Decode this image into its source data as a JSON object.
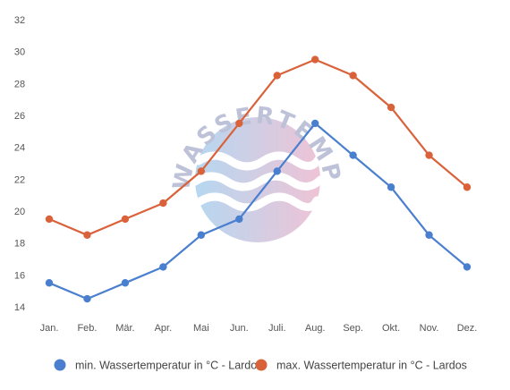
{
  "chart_data": {
    "type": "line",
    "title": "",
    "xlabel": "",
    "ylabel": "",
    "categories": [
      "Jan.",
      "Feb.",
      "Mär.",
      "Apr.",
      "Mai",
      "Jun.",
      "Juli.",
      "Aug.",
      "Sep.",
      "Okt.",
      "Nov.",
      "Dez."
    ],
    "ylim": [
      14,
      32
    ],
    "yticks": [
      14,
      16,
      18,
      20,
      22,
      24,
      26,
      28,
      30,
      32
    ],
    "grid": false,
    "legend_position": "bottom",
    "series": [
      {
        "name": "min. Wassertemperatur in °C - Lardos",
        "color": "#4a7fcf",
        "values": [
          15.5,
          14.5,
          15.5,
          16.5,
          18.5,
          19.5,
          22.5,
          25.5,
          23.5,
          21.5,
          18.5,
          16.5
        ]
      },
      {
        "name": "max. Wassertemperatur in °C - Lardos",
        "color": "#d9623a",
        "values": [
          19.5,
          18.5,
          19.5,
          20.5,
          22.5,
          25.5,
          28.5,
          29.5,
          28.5,
          26.5,
          23.5,
          21.5
        ]
      }
    ]
  },
  "watermark": {
    "text": "WASSERTEMPERATUR.ORG",
    "icon": "wave-circle-logo"
  }
}
